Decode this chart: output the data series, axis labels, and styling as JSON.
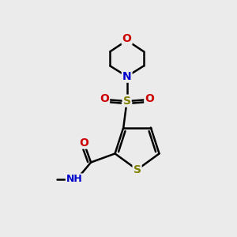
{
  "bg_color": "#ebebeb",
  "bond_color": "#000000",
  "S_thiophene_color": "#808000",
  "S_sulfonyl_color": "#808000",
  "N_color": "#0000cc",
  "O_color": "#cc0000",
  "lw": 1.8,
  "figsize": [
    3.0,
    3.0
  ],
  "dpi": 100,
  "xlim": [
    0,
    10
  ],
  "ylim": [
    0,
    10
  ]
}
